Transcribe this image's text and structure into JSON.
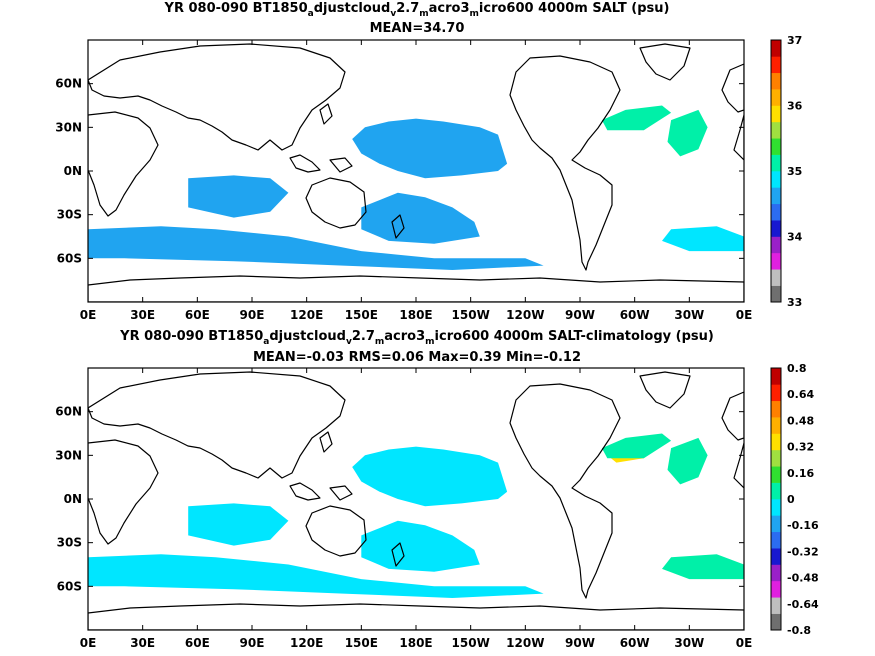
{
  "chart_data": [
    {
      "type": "heatmap",
      "title_parts": [
        "YR 080-090 BT1850",
        "a",
        "djustcloud",
        "v",
        "2.7",
        "m",
        "acro3",
        "m",
        "icro600 4000m SALT (psu)"
      ],
      "subtitle": "MEAN=34.70",
      "x_ticks": [
        "0E",
        "30E",
        "60E",
        "90E",
        "120E",
        "150E",
        "180E",
        "150W",
        "120W",
        "90W",
        "60W",
        "30W",
        "0E"
      ],
      "y_ticks": [
        "60N",
        "30N",
        "0N",
        "30S",
        "60S"
      ],
      "y_tick_lats": [
        60,
        30,
        0,
        -30,
        -60
      ],
      "lat_range": [
        -90,
        90
      ],
      "colorbar": {
        "ticks": [
          "37",
          "36",
          "35",
          "34",
          "33"
        ],
        "tick_values": [
          37,
          36,
          35,
          34,
          33
        ],
        "range": [
          33,
          37
        ],
        "colors": [
          "#6f6f6f",
          "#bfbfbf",
          "#e020e0",
          "#9a20c8",
          "#1818d0",
          "#2b6cf0",
          "#20a4f0",
          "#00e6ff",
          "#00f0a8",
          "#30e030",
          "#a0e040",
          "#ffe000",
          "#ffb000",
          "#ff8000",
          "#ff2000",
          "#c00000"
        ]
      },
      "regions": [
        {
          "name": "north-pacific",
          "value": 34.7,
          "lonlat": [
            [
              145,
              22
            ],
            [
              152,
              30
            ],
            [
              165,
              34
            ],
            [
              180,
              36
            ],
            [
              195,
              34
            ],
            [
              215,
              30
            ],
            [
              225,
              25
            ],
            [
              230,
              5
            ],
            [
              225,
              0
            ],
            [
              205,
              -3
            ],
            [
              185,
              -5
            ],
            [
              170,
              0
            ],
            [
              160,
              5
            ],
            [
              150,
              12
            ]
          ]
        },
        {
          "name": "south-pacific",
          "value": 34.7,
          "lonlat": [
            [
              150,
              -25
            ],
            [
              170,
              -15
            ],
            [
              185,
              -18
            ],
            [
              200,
              -25
            ],
            [
              212,
              -35
            ],
            [
              215,
              -45
            ],
            [
              190,
              -50
            ],
            [
              165,
              -48
            ],
            [
              150,
              -40
            ]
          ]
        },
        {
          "name": "indian-ocean",
          "value": 34.7,
          "lonlat": [
            [
              55,
              -5
            ],
            [
              80,
              -3
            ],
            [
              100,
              -5
            ],
            [
              110,
              -15
            ],
            [
              100,
              -28
            ],
            [
              80,
              -32
            ],
            [
              55,
              -25
            ]
          ]
        },
        {
          "name": "southern-ocean",
          "value": 34.7,
          "lonlat": [
            [
              0,
              -40
            ],
            [
              40,
              -38
            ],
            [
              70,
              -40
            ],
            [
              110,
              -45
            ],
            [
              150,
              -55
            ],
            [
              190,
              -60
            ],
            [
              240,
              -60
            ],
            [
              250,
              -65
            ],
            [
              200,
              -68
            ],
            [
              140,
              -65
            ],
            [
              80,
              -62
            ],
            [
              20,
              -60
            ],
            [
              0,
              -60
            ]
          ]
        },
        {
          "name": "south-atlantic",
          "value": 34.8,
          "lonlat": [
            [
              320,
              -40
            ],
            [
              345,
              -38
            ],
            [
              360,
              -45
            ],
            [
              360,
              -55
            ],
            [
              330,
              -55
            ],
            [
              315,
              -48
            ]
          ]
        },
        {
          "name": "north-atlantic",
          "value": 35.2,
          "lonlat": [
            [
              282,
              35
            ],
            [
              295,
              42
            ],
            [
              315,
              45
            ],
            [
              320,
              40
            ],
            [
              305,
              28
            ],
            [
              285,
              28
            ]
          ]
        },
        {
          "name": "north-atlantic-east",
          "value": 35.0,
          "lonlat": [
            [
              320,
              35
            ],
            [
              335,
              42
            ],
            [
              340,
              30
            ],
            [
              335,
              15
            ],
            [
              325,
              10
            ],
            [
              318,
              20
            ]
          ]
        }
      ]
    },
    {
      "type": "heatmap",
      "title_parts": [
        "YR 080-090 BT1850",
        "a",
        "djustcloud",
        "v",
        "2.7",
        "m",
        "acro3",
        "m",
        "icro600 4000m SALT-climatology (psu)"
      ],
      "subtitle": "MEAN=-0.03   RMS=0.06   Max=0.39   Min=-0.12",
      "x_ticks": [
        "0E",
        "30E",
        "60E",
        "90E",
        "120E",
        "150E",
        "180E",
        "150W",
        "120W",
        "90W",
        "60W",
        "30W",
        "0E"
      ],
      "y_ticks": [
        "60N",
        "30N",
        "0N",
        "30S",
        "60S"
      ],
      "y_tick_lats": [
        60,
        30,
        0,
        -30,
        -60
      ],
      "lat_range": [
        -90,
        90
      ],
      "colorbar": {
        "ticks": [
          "0.8",
          "0.64",
          "0.48",
          "0.32",
          "0.16",
          "0",
          "-0.16",
          "-0.32",
          "-0.48",
          "-0.64",
          "-0.8"
        ],
        "tick_values": [
          0.8,
          0.64,
          0.48,
          0.32,
          0.16,
          0,
          -0.16,
          -0.32,
          -0.48,
          -0.64,
          -0.8
        ],
        "range": [
          -0.8,
          0.8
        ],
        "colors": [
          "#6f6f6f",
          "#bfbfbf",
          "#e020e0",
          "#9a20c8",
          "#1818d0",
          "#2b6cf0",
          "#20a4f0",
          "#00e6ff",
          "#00f0a8",
          "#30e030",
          "#a0e040",
          "#ffe000",
          "#ffb000",
          "#ff8000",
          "#ff2000",
          "#c00000"
        ]
      },
      "regions": [
        {
          "name": "north-pacific",
          "value": -0.03,
          "lonlat": [
            [
              145,
              22
            ],
            [
              152,
              30
            ],
            [
              165,
              34
            ],
            [
              180,
              36
            ],
            [
              195,
              34
            ],
            [
              215,
              30
            ],
            [
              225,
              25
            ],
            [
              230,
              5
            ],
            [
              225,
              0
            ],
            [
              205,
              -3
            ],
            [
              185,
              -5
            ],
            [
              170,
              0
            ],
            [
              160,
              5
            ],
            [
              150,
              12
            ]
          ]
        },
        {
          "name": "south-pacific",
          "value": -0.03,
          "lonlat": [
            [
              150,
              -25
            ],
            [
              170,
              -15
            ],
            [
              185,
              -18
            ],
            [
              200,
              -25
            ],
            [
              212,
              -35
            ],
            [
              215,
              -45
            ],
            [
              190,
              -50
            ],
            [
              165,
              -48
            ],
            [
              150,
              -40
            ]
          ]
        },
        {
          "name": "indian-ocean",
          "value": -0.03,
          "lonlat": [
            [
              55,
              -5
            ],
            [
              80,
              -3
            ],
            [
              100,
              -5
            ],
            [
              110,
              -15
            ],
            [
              100,
              -28
            ],
            [
              80,
              -32
            ],
            [
              55,
              -25
            ]
          ]
        },
        {
          "name": "southern-ocean",
          "value": -0.03,
          "lonlat": [
            [
              0,
              -40
            ],
            [
              40,
              -38
            ],
            [
              70,
              -40
            ],
            [
              110,
              -45
            ],
            [
              150,
              -55
            ],
            [
              190,
              -60
            ],
            [
              240,
              -60
            ],
            [
              250,
              -65
            ],
            [
              200,
              -68
            ],
            [
              140,
              -65
            ],
            [
              80,
              -62
            ],
            [
              20,
              -60
            ],
            [
              0,
              -60
            ]
          ]
        },
        {
          "name": "south-atlantic",
          "value": 0.05,
          "lonlat": [
            [
              320,
              -40
            ],
            [
              345,
              -38
            ],
            [
              360,
              -45
            ],
            [
              360,
              -55
            ],
            [
              330,
              -55
            ],
            [
              315,
              -48
            ]
          ]
        },
        {
          "name": "gulf-stream",
          "value": 0.35,
          "lonlat": [
            [
              285,
              30
            ],
            [
              300,
              32
            ],
            [
              310,
              35
            ],
            [
              305,
              28
            ],
            [
              290,
              25
            ]
          ]
        },
        {
          "name": "north-atlantic",
          "value": 0.05,
          "lonlat": [
            [
              282,
              35
            ],
            [
              295,
              42
            ],
            [
              315,
              45
            ],
            [
              320,
              40
            ],
            [
              305,
              28
            ],
            [
              285,
              28
            ]
          ]
        },
        {
          "name": "north-atlantic-east",
          "value": 0.03,
          "lonlat": [
            [
              320,
              35
            ],
            [
              335,
              42
            ],
            [
              340,
              30
            ],
            [
              335,
              15
            ],
            [
              325,
              10
            ],
            [
              318,
              20
            ]
          ]
        }
      ]
    }
  ]
}
